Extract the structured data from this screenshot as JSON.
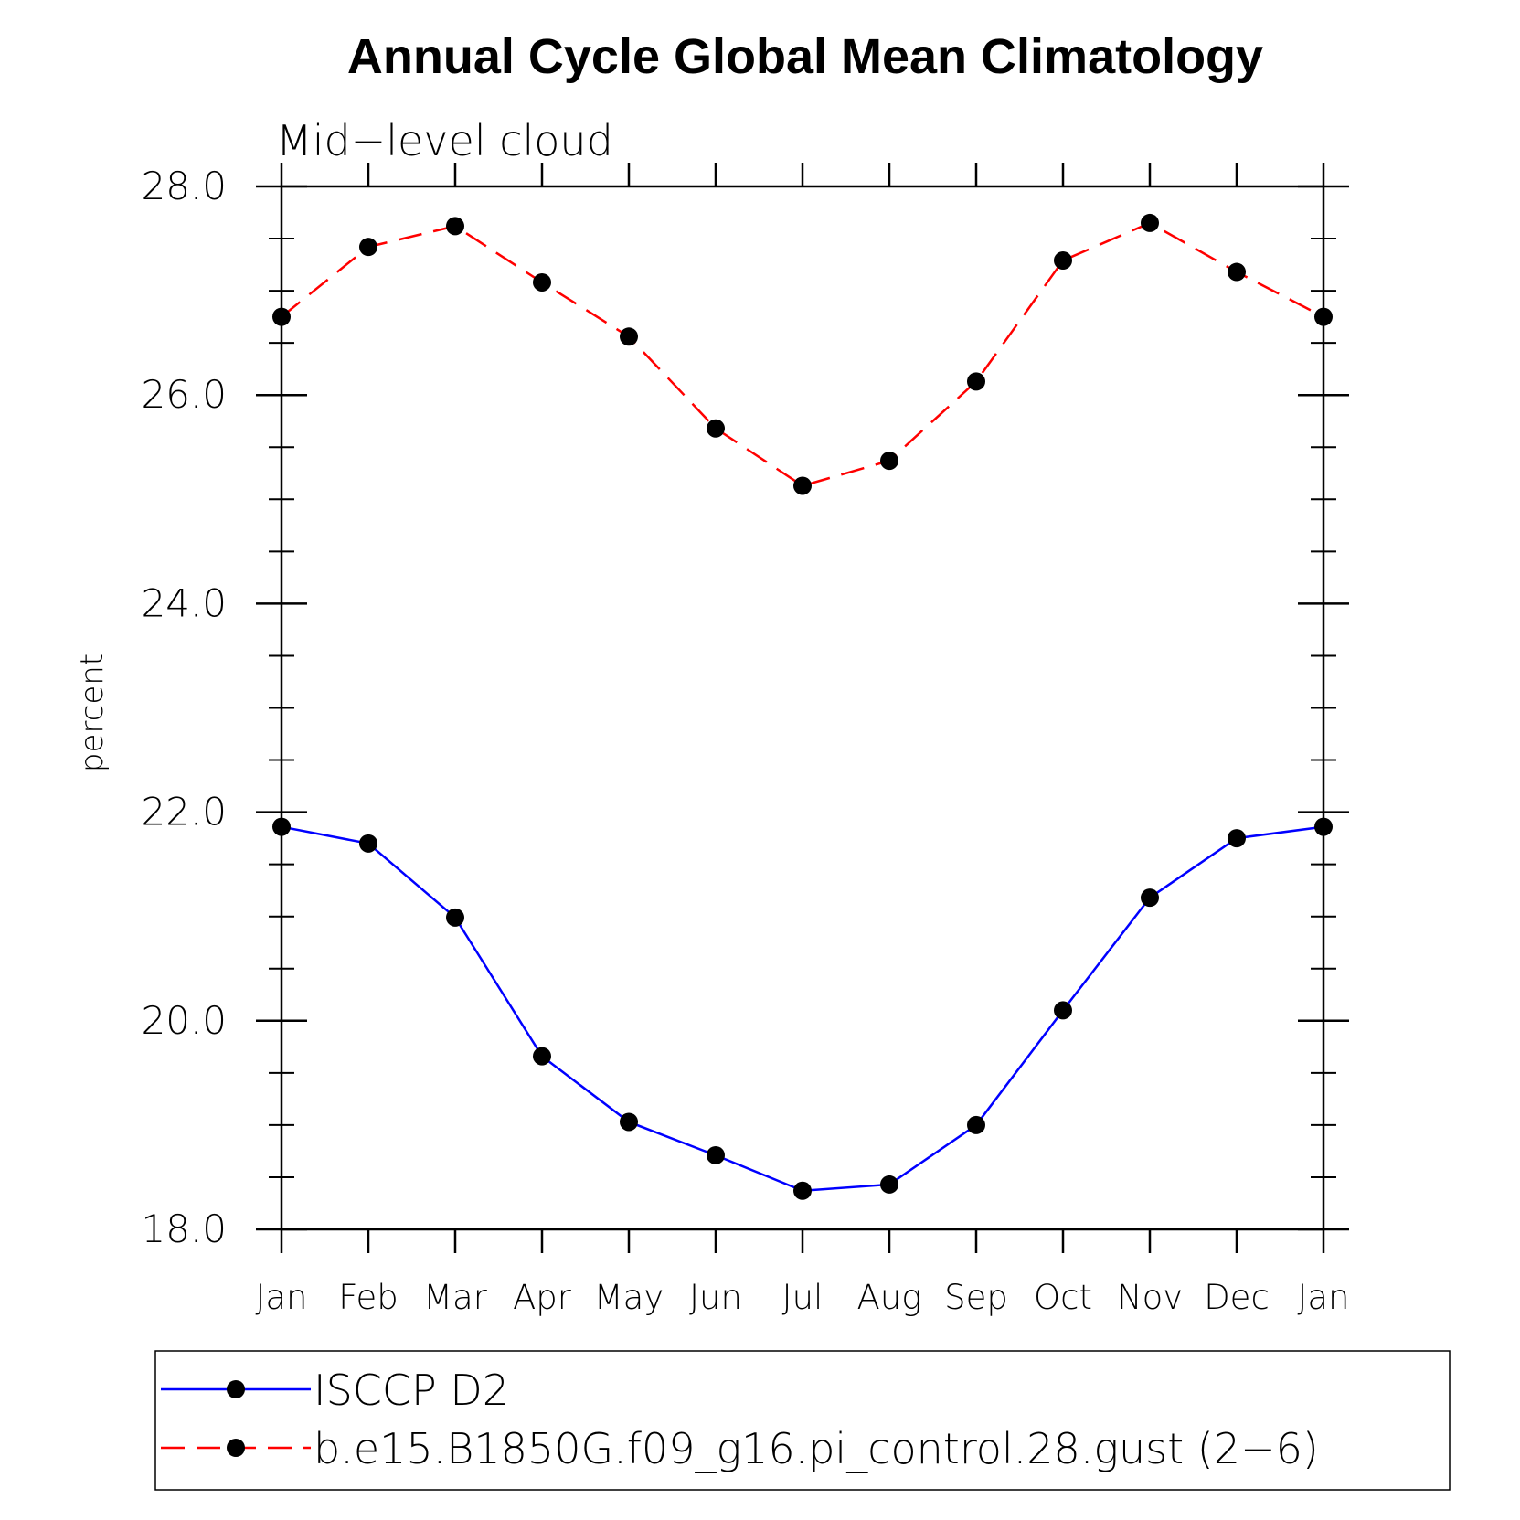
{
  "chart_data": {
    "type": "line",
    "title": "Annual Cycle Global Mean Climatology",
    "subtitle": "Mid−level cloud",
    "ylabel": "percent",
    "xlabel": "",
    "categories": [
      "Jan",
      "Feb",
      "Mar",
      "Apr",
      "May",
      "Jun",
      "Jul",
      "Aug",
      "Sep",
      "Oct",
      "Nov",
      "Dec",
      "Jan"
    ],
    "ylim": [
      18.0,
      28.0
    ],
    "yticks": [
      "18.0",
      "20.0",
      "22.0",
      "24.0",
      "26.0",
      "28.0"
    ],
    "grid": false,
    "legend_position": "bottom",
    "series": [
      {
        "name": "ISCCP D2",
        "color": "#0000ff",
        "dash": "solid",
        "marker": "filled-circle",
        "values": [
          21.86,
          21.7,
          20.99,
          19.66,
          19.03,
          18.71,
          18.37,
          18.43,
          19.0,
          20.1,
          21.18,
          21.75,
          21.86
        ]
      },
      {
        "name": "b.e15.B1850G.f09_g16.pi_control.28.gust (2−6)",
        "color": "#ff0000",
        "dash": "dashed",
        "marker": "filled-circle",
        "values": [
          26.75,
          27.42,
          27.62,
          27.08,
          26.56,
          25.68,
          25.13,
          25.37,
          26.13,
          27.29,
          27.65,
          27.18,
          26.75
        ]
      }
    ]
  }
}
